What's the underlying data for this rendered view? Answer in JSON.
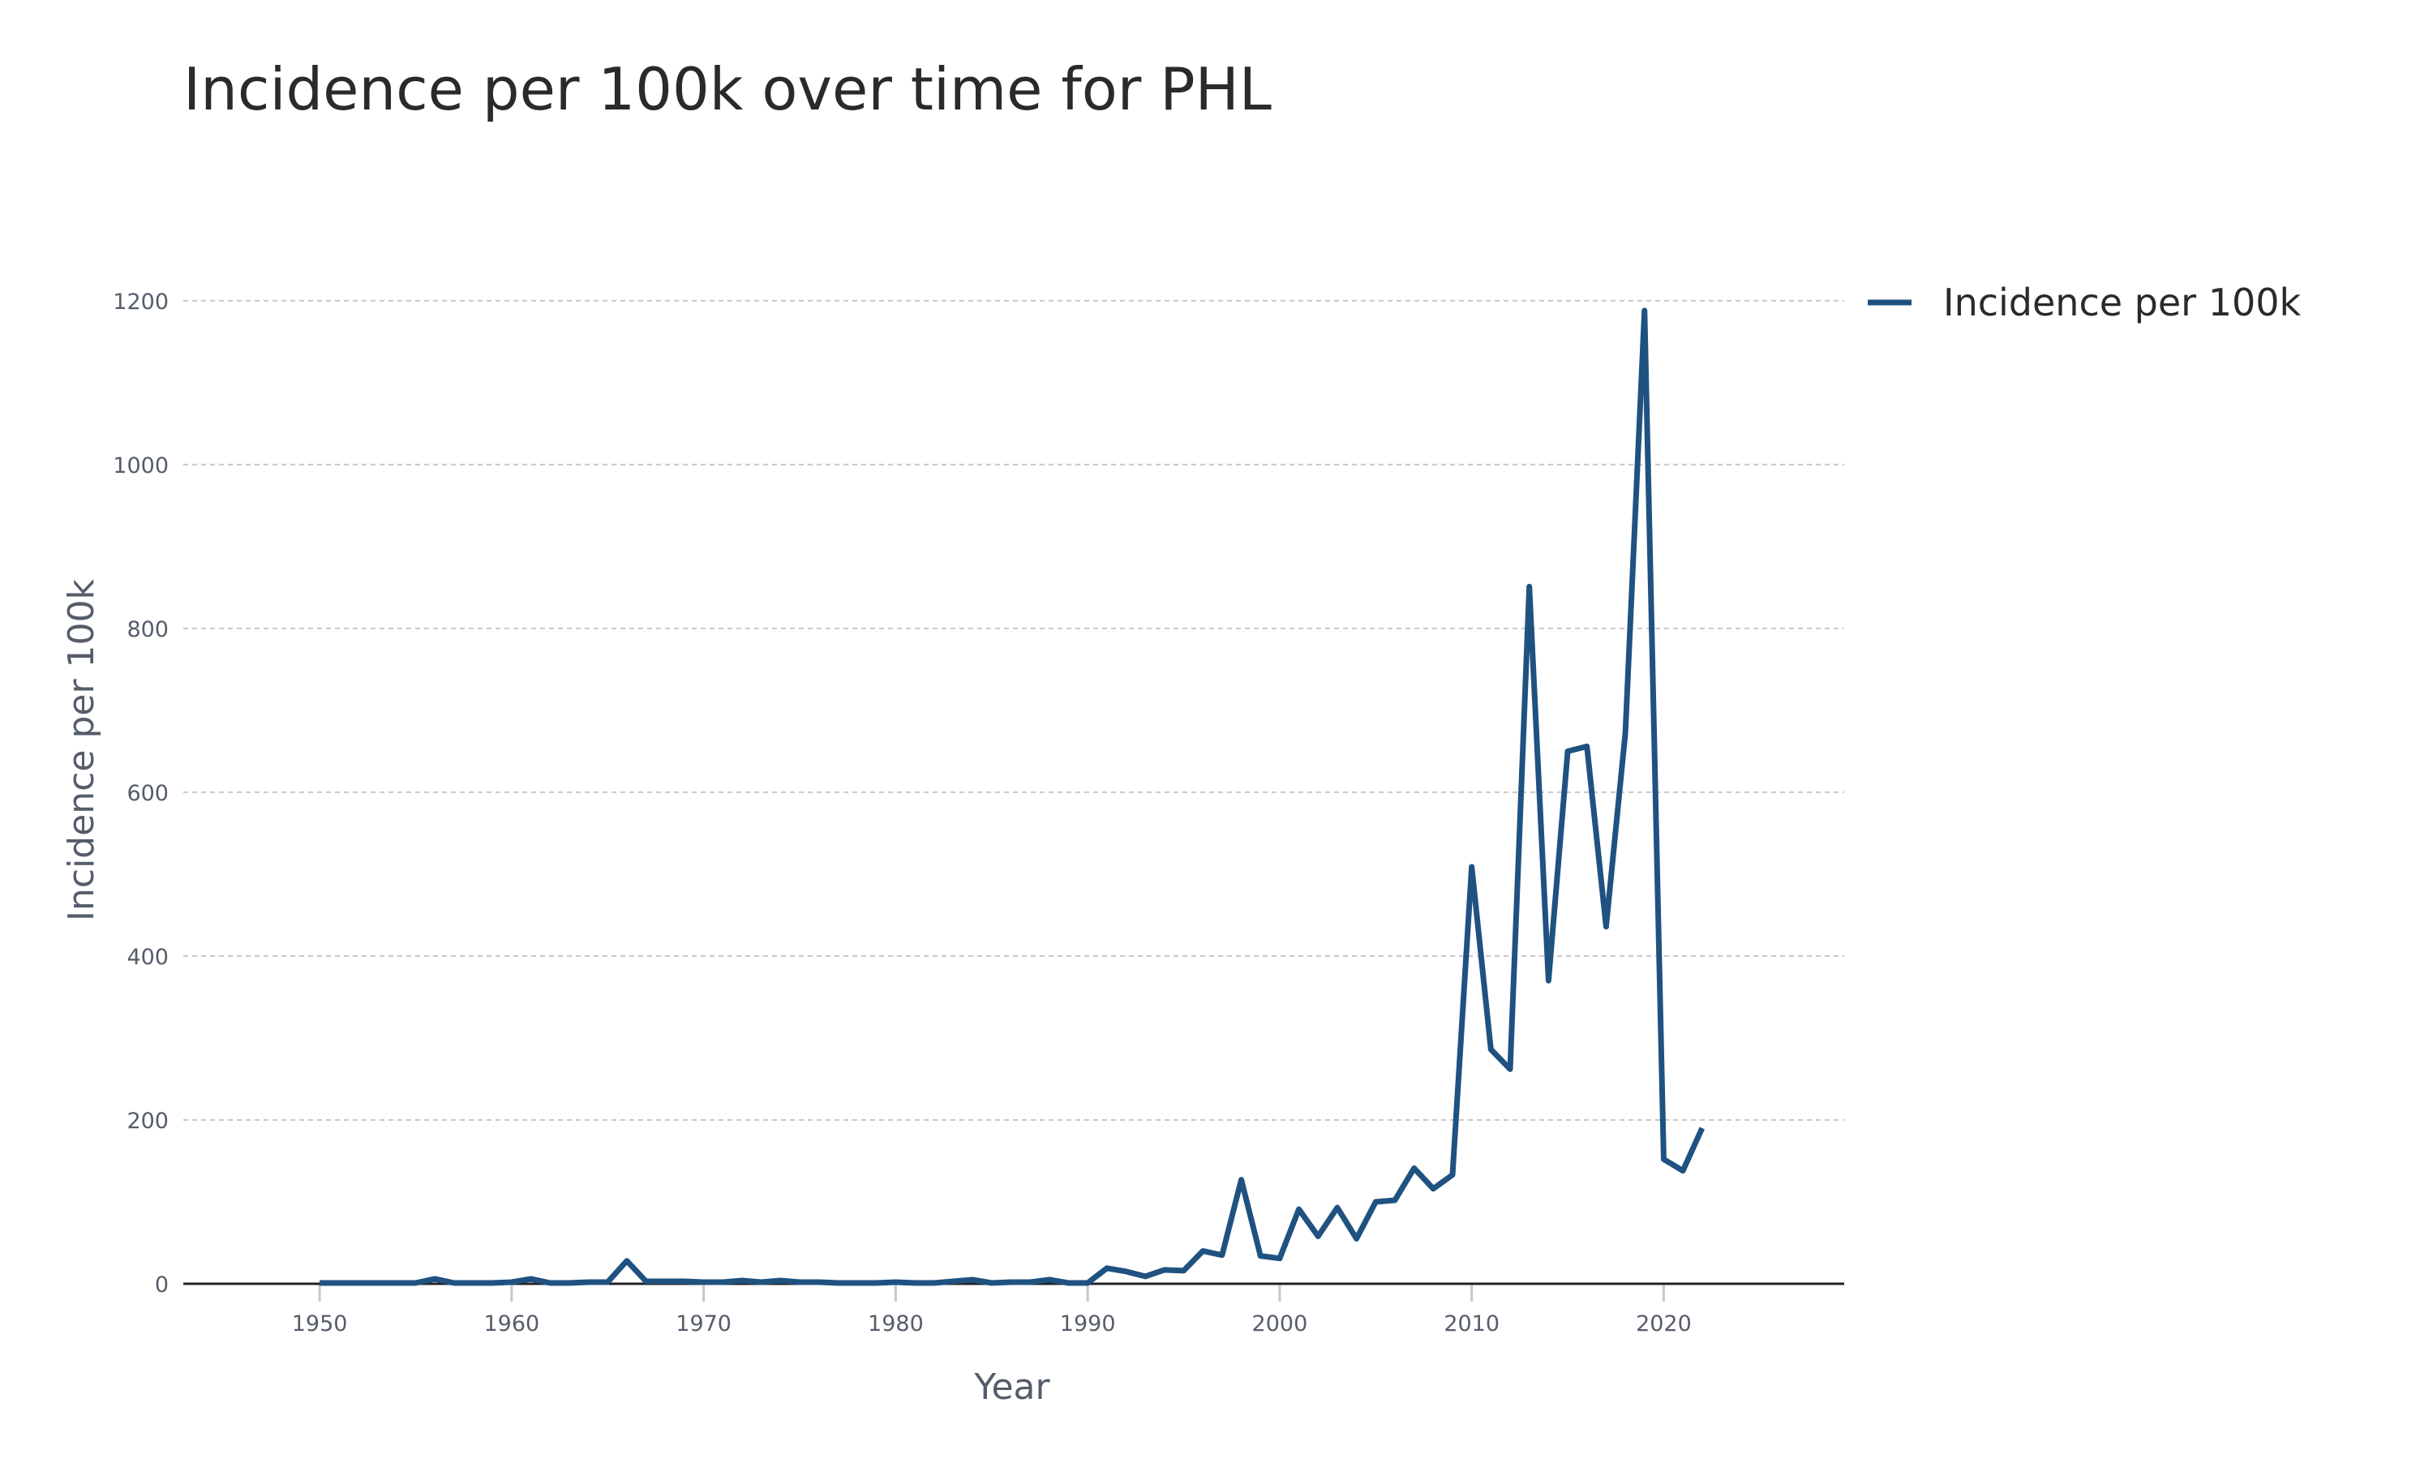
{
  "chart_data": {
    "type": "line",
    "title": "Incidence per 100k over time for PHL",
    "x_label": "Year",
    "y_label": "Incidence per 100k",
    "x": [
      1950,
      1951,
      1952,
      1953,
      1954,
      1955,
      1956,
      1957,
      1958,
      1959,
      1960,
      1961,
      1962,
      1963,
      1964,
      1965,
      1966,
      1967,
      1968,
      1969,
      1970,
      1971,
      1972,
      1973,
      1974,
      1975,
      1976,
      1977,
      1978,
      1979,
      1980,
      1981,
      1982,
      1983,
      1984,
      1985,
      1986,
      1987,
      1988,
      1989,
      1990,
      1991,
      1992,
      1993,
      1994,
      1995,
      1996,
      1997,
      1998,
      1999,
      2000,
      2001,
      2002,
      2003,
      2004,
      2005,
      2006,
      2007,
      2008,
      2009,
      2010,
      2011,
      2012,
      2013,
      2014,
      2015,
      2016,
      2017,
      2018,
      2019,
      2020,
      2021,
      2022
    ],
    "series": [
      {
        "name": "Incidence per 100k",
        "color": "#1f5280",
        "values": [
          1,
          1,
          1,
          1,
          1,
          1,
          6,
          1,
          1,
          1,
          2,
          6,
          1,
          1,
          2,
          2,
          28,
          3,
          3,
          3,
          2,
          2,
          4,
          2,
          4,
          2,
          2,
          1,
          1,
          1,
          2,
          1,
          1,
          3,
          5,
          1,
          2,
          2,
          5,
          1,
          1,
          19,
          15,
          9,
          17,
          16,
          40,
          35,
          127,
          34,
          31,
          91,
          58,
          93,
          55,
          100,
          102,
          141,
          116,
          133,
          509,
          286,
          262,
          851,
          370,
          650,
          656,
          436,
          672,
          1188,
          152,
          138,
          190
        ]
      }
    ],
    "xlim": [
      1942.9,
      2029.4
    ],
    "ylim": [
      0,
      1280
    ],
    "xticks": [
      1950,
      1960,
      1970,
      1980,
      1990,
      2000,
      2010,
      2020
    ],
    "yticks": [
      0,
      200,
      400,
      600,
      800,
      1000,
      1200
    ],
    "grid": true,
    "legend": "right"
  }
}
